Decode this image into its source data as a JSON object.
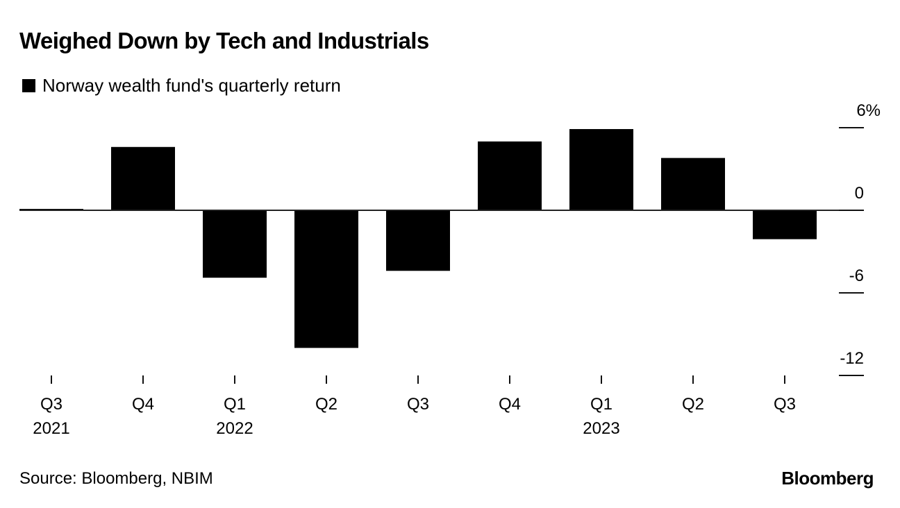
{
  "title": "Weighed Down by Tech and Industrials",
  "legend": {
    "label": "Norway wealth fund's quarterly return",
    "color": "#000000"
  },
  "source": "Source: Bloomberg, NBIM",
  "brand": "Bloomberg",
  "chart_data": {
    "type": "bar",
    "title": "Weighed Down by Tech and Industrials",
    "xlabel": "",
    "ylabel": "",
    "categories": [
      "Q3 2021",
      "Q4 2021",
      "Q1 2022",
      "Q2 2022",
      "Q3 2022",
      "Q4 2022",
      "Q1 2023",
      "Q2 2023",
      "Q3 2023"
    ],
    "x_tick_labels": [
      {
        "line1": "Q3",
        "line2": "2021"
      },
      {
        "line1": "Q4",
        "line2": ""
      },
      {
        "line1": "Q1",
        "line2": "2022"
      },
      {
        "line1": "Q2",
        "line2": ""
      },
      {
        "line1": "Q3",
        "line2": ""
      },
      {
        "line1": "Q4",
        "line2": ""
      },
      {
        "line1": "Q1",
        "line2": "2023"
      },
      {
        "line1": "Q2",
        "line2": ""
      },
      {
        "line1": "Q3",
        "line2": ""
      }
    ],
    "series": [
      {
        "name": "Norway wealth fund's quarterly return",
        "color": "#000000",
        "values": [
          0.1,
          4.6,
          -4.9,
          -10.0,
          -4.4,
          5.0,
          5.9,
          3.8,
          -2.1
        ]
      }
    ],
    "ylim": [
      -12,
      6
    ],
    "y_ticks": [
      6,
      0,
      -6,
      -12
    ],
    "y_tick_labels": [
      "6%",
      "0",
      "-6",
      "-12"
    ],
    "y_axis_position": "right",
    "grid": false,
    "legend_position": "top-left"
  }
}
